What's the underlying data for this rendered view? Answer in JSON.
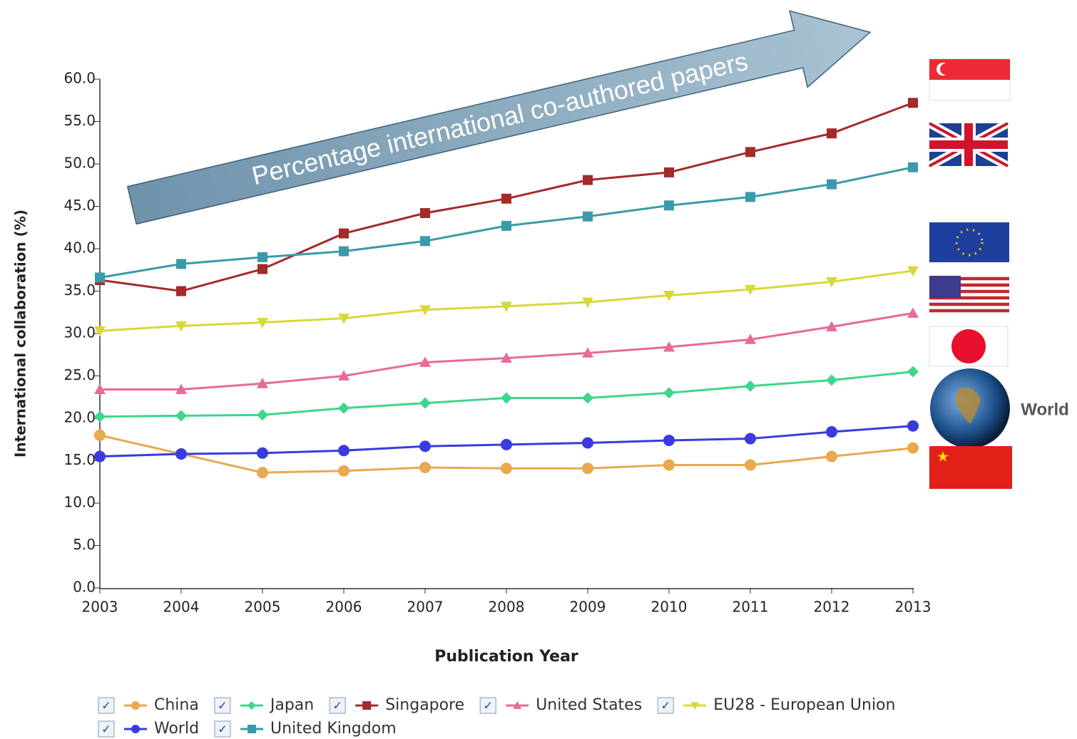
{
  "chart_data": {
    "type": "line",
    "annotation": "Percentage international co-authored papers",
    "flag_label": "World",
    "x_label": "Publication Year",
    "y_label": "International collaboration (%)",
    "x": [
      2003,
      2004,
      2005,
      2006,
      2007,
      2008,
      2009,
      2010,
      2011,
      2012,
      2013
    ],
    "xlim": [
      2003,
      2013
    ],
    "xticks": [
      2003,
      2004,
      2005,
      2006,
      2007,
      2008,
      2009,
      2010,
      2011,
      2012,
      2013
    ],
    "ylim": [
      0,
      60
    ],
    "yticks": [
      {
        "value": 0,
        "label": "0.0"
      },
      {
        "value": 5,
        "label": "5.0"
      },
      {
        "value": 10,
        "label": "10.0"
      },
      {
        "value": 15,
        "label": "15.0"
      },
      {
        "value": 20,
        "label": "20.0"
      },
      {
        "value": 25,
        "label": "25.0"
      },
      {
        "value": 30,
        "label": "30.0"
      },
      {
        "value": 35,
        "label": "35.0"
      },
      {
        "value": 40,
        "label": "40.0"
      },
      {
        "value": 45,
        "label": "45.0"
      },
      {
        "value": 50,
        "label": "50.0"
      },
      {
        "value": 55,
        "label": "55.0"
      },
      {
        "value": 60,
        "label": "60.0"
      }
    ],
    "series": [
      {
        "name": "China",
        "color": "#e8a94f",
        "marker": "circle",
        "values": [
          18.0,
          15.8,
          13.6,
          13.8,
          14.2,
          14.1,
          14.1,
          14.5,
          14.5,
          15.5,
          16.5
        ]
      },
      {
        "name": "Japan",
        "color": "#3ed68b",
        "marker": "diamond",
        "values": [
          20.2,
          20.3,
          20.4,
          21.2,
          21.8,
          22.4,
          22.4,
          23.0,
          23.8,
          24.5,
          25.5
        ]
      },
      {
        "name": "Singapore",
        "color": "#a52a2a",
        "marker": "square",
        "values": [
          36.3,
          35.0,
          37.6,
          41.8,
          44.2,
          45.9,
          48.1,
          49.0,
          51.4,
          53.6,
          57.2
        ]
      },
      {
        "name": "United States",
        "color": "#e8699a",
        "marker": "triangle",
        "values": [
          23.4,
          23.4,
          24.1,
          25.0,
          26.6,
          27.1,
          27.7,
          28.4,
          29.3,
          30.8,
          32.4
        ]
      },
      {
        "name": "EU28 - European Union",
        "color": "#d8d83a",
        "marker": "triangle-down",
        "values": [
          30.3,
          30.9,
          31.3,
          31.8,
          32.8,
          33.2,
          33.7,
          34.5,
          35.2,
          36.1,
          37.4
        ]
      },
      {
        "name": "World",
        "color": "#3a3ae0",
        "marker": "circle",
        "values": [
          15.5,
          15.8,
          15.9,
          16.2,
          16.7,
          16.9,
          17.1,
          17.4,
          17.6,
          18.4,
          19.1
        ]
      },
      {
        "name": "United Kingdom",
        "color": "#3a9aaa",
        "marker": "square",
        "values": [
          36.6,
          38.2,
          39.0,
          39.7,
          40.9,
          42.7,
          43.8,
          45.1,
          46.1,
          47.6,
          49.6
        ]
      }
    ]
  }
}
